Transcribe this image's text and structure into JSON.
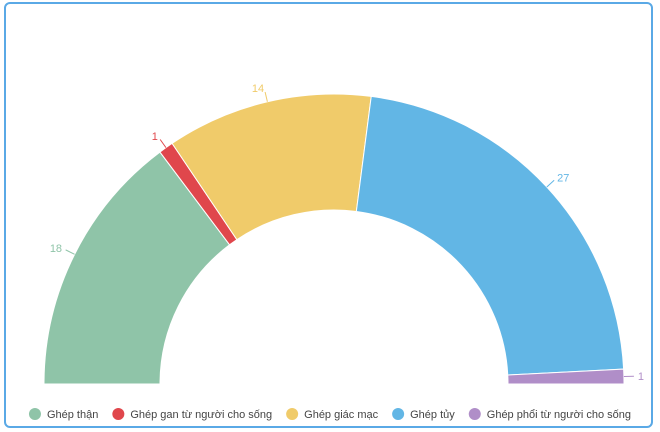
{
  "chart_data": {
    "type": "pie",
    "variant": "semi-donut",
    "title": "",
    "categories": [
      "Ghép thận",
      "Ghép gan từ người cho sống",
      "Ghép giác mạc",
      "Ghép tủy",
      "Ghép phổi từ người cho sống"
    ],
    "values": [
      18,
      1,
      14,
      27,
      1
    ],
    "colors": [
      "#8fc4a8",
      "#e0474c",
      "#f0cb6a",
      "#62b6e5",
      "#b08ec8"
    ],
    "legend_placement": "bottom"
  }
}
